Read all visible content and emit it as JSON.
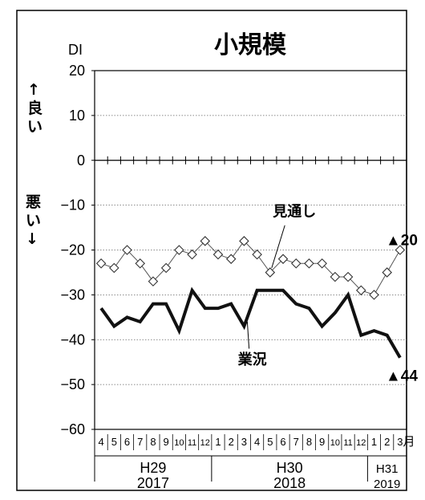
{
  "chart_data": {
    "type": "line",
    "title": "小規模",
    "ylabel": "DI",
    "ylim": [
      -60,
      20
    ],
    "yticks": [
      20,
      10,
      0,
      -10,
      -20,
      -30,
      -40,
      -50,
      -60
    ],
    "ytick_labels": [
      "20",
      "10",
      "0",
      "−10",
      "−20",
      "−30",
      "−40",
      "−50",
      "−60"
    ],
    "side_label_up": "↑良い",
    "side_label_down": "悪い↓",
    "x_unit": "月",
    "months": [
      "4",
      "5",
      "6",
      "7",
      "8",
      "9",
      "10",
      "11",
      "12",
      "1",
      "2",
      "3",
      "4",
      "5",
      "6",
      "7",
      "8",
      "9",
      "10",
      "11",
      "12",
      "1",
      "2",
      "3"
    ],
    "year_groups": [
      {
        "era": "H29",
        "year": "2017",
        "start": 0,
        "end": 8
      },
      {
        "era": "H30",
        "year": "2018",
        "start": 9,
        "end": 20
      },
      {
        "era": "H31",
        "year": "2019",
        "start": 21,
        "end": 23
      }
    ],
    "grid": "horizontal dotted at ±10, ±20, ±30, ±40, ±50",
    "series": [
      {
        "name": "業況",
        "style": "thick-solid",
        "color": "#111111",
        "values": [
          -33,
          -37,
          -35,
          -36,
          -32,
          -32,
          -38,
          -29,
          -33,
          -33,
          -32,
          -37,
          -29,
          -29,
          -29,
          -32,
          -33,
          -37,
          -34,
          -30,
          -39,
          -38,
          -39,
          -44
        ]
      },
      {
        "name": "見通し",
        "style": "thin-diamond",
        "color": "#555555",
        "values": [
          -23,
          -24,
          -20,
          -23,
          -27,
          -24,
          -20,
          -21,
          -18,
          -21,
          -22,
          -18,
          -21,
          -25,
          -22,
          -23,
          -23,
          -23,
          -26,
          -26,
          -29,
          -30,
          -25,
          -20
        ]
      }
    ],
    "annotations": [
      {
        "series": "見通し",
        "text": "▲20"
      },
      {
        "series": "業況",
        "text": "▲44"
      }
    ]
  }
}
